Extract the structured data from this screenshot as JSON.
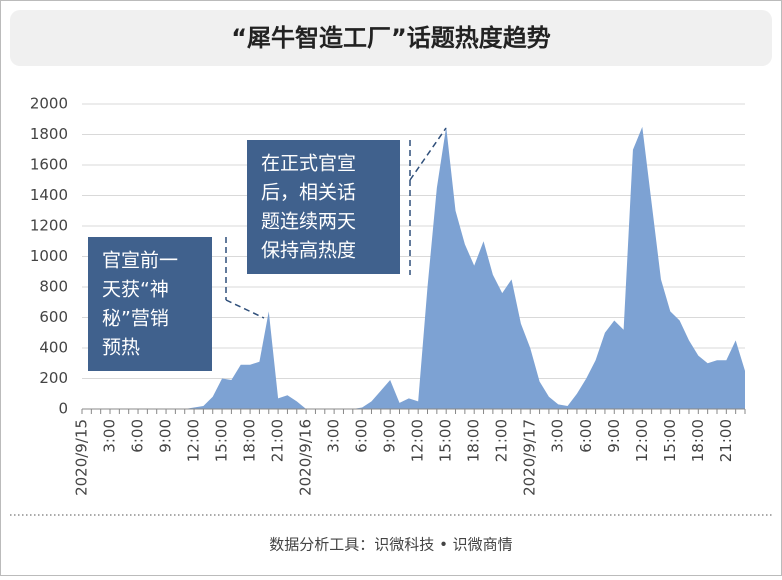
{
  "chart_data": {
    "type": "area",
    "title": "“犀牛智造工厂”话题热度趋势",
    "source": "数据分析工具：识微科技 • 识微商情",
    "color": "#7da2d3",
    "grid": true,
    "ylim": [
      0,
      2000
    ],
    "yticks": [
      0,
      200,
      400,
      600,
      800,
      1000,
      1200,
      1400,
      1600,
      1800,
      2000
    ],
    "categories": [
      "2020/9/15",
      null,
      null,
      "3:00",
      null,
      null,
      "6:00",
      null,
      null,
      "9:00",
      null,
      null,
      "12:00",
      null,
      null,
      "15:00",
      null,
      null,
      "18:00",
      null,
      null,
      "21:00",
      null,
      null,
      "2020/9/16",
      null,
      null,
      "3:00",
      null,
      null,
      "6:00",
      null,
      null,
      "9:00",
      null,
      null,
      "12:00",
      null,
      null,
      "15:00",
      null,
      null,
      "18:00",
      null,
      null,
      "21:00",
      null,
      null,
      "2020/9/17",
      null,
      null,
      "3:00",
      null,
      null,
      "6:00",
      null,
      null,
      "9:00",
      null,
      null,
      "12:00",
      null,
      null,
      "15:00",
      null,
      null,
      "18:00",
      null,
      null,
      "21:00",
      null,
      null
    ],
    "values": [
      0,
      0,
      0,
      0,
      0,
      0,
      0,
      0,
      0,
      0,
      0,
      0,
      10,
      20,
      80,
      200,
      190,
      290,
      290,
      310,
      640,
      70,
      90,
      50,
      0,
      0,
      0,
      0,
      0,
      0,
      10,
      50,
      120,
      190,
      40,
      70,
      50,
      800,
      1450,
      1850,
      1300,
      1080,
      940,
      1100,
      880,
      760,
      850,
      560,
      400,
      180,
      80,
      30,
      20,
      100,
      200,
      320,
      500,
      580,
      520,
      1700,
      1850,
      1350,
      850,
      640,
      580,
      450,
      350,
      300,
      320,
      320,
      450,
      250
    ],
    "annotations": [
      {
        "lines": [
          "官宣前一",
          "天获“神",
          "秘”营销",
          "预热"
        ]
      },
      {
        "lines": [
          "在正式官宣",
          "后，相关话",
          "题连续两天",
          "保持高热度"
        ]
      }
    ]
  }
}
